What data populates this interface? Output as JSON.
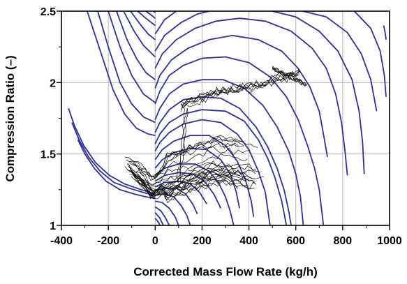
{
  "chart_data": {
    "type": "line",
    "title": "",
    "xlabel": "Corrected Mass Flow Rate (kg/h)",
    "ylabel": "Compression Ratio (–)",
    "xlim": [
      -400,
      1000
    ],
    "ylim": [
      1,
      2.5
    ],
    "xticks": [
      -400,
      -200,
      0,
      200,
      400,
      600,
      800,
      1000
    ],
    "yticks": [
      1,
      1.5,
      2,
      2.5
    ],
    "xtick_labels": [
      "-400",
      "-200",
      "0",
      "200",
      "400",
      "600",
      "800",
      "1000"
    ],
    "ytick_labels": [
      "1",
      "1.5",
      "2",
      "2.5"
    ],
    "grid": true,
    "legend": "none",
    "colors": {
      "speed_lines": "#2e3192",
      "measured_traces": "#111111",
      "grid": "#b4b4b4"
    },
    "series": [
      {
        "values": [
          [
            -290,
            2.5
          ],
          [
            -230,
            2.2
          ],
          [
            -180,
            1.95
          ],
          [
            -130,
            1.78
          ],
          [
            -80,
            1.68
          ],
          [
            -30,
            1.64
          ],
          [
            0,
            1.63
          ]
        ]
      },
      {
        "values": [
          [
            -245,
            2.5
          ],
          [
            -200,
            2.25
          ],
          [
            -150,
            2.0
          ],
          [
            -100,
            1.85
          ],
          [
            -50,
            1.76
          ],
          [
            0,
            1.72
          ]
        ]
      },
      {
        "values": [
          [
            -200,
            2.5
          ],
          [
            -150,
            2.25
          ],
          [
            -100,
            2.05
          ],
          [
            -50,
            1.92
          ],
          [
            0,
            1.86
          ]
        ]
      },
      {
        "values": [
          [
            -165,
            2.5
          ],
          [
            -120,
            2.3
          ],
          [
            -80,
            2.17
          ],
          [
            -40,
            2.07
          ],
          [
            0,
            2.02
          ]
        ]
      },
      {
        "values": [
          [
            -135,
            2.5
          ],
          [
            -90,
            2.36
          ],
          [
            -50,
            2.26
          ],
          [
            0,
            2.18
          ]
        ]
      },
      {
        "values": [
          [
            -105,
            2.5
          ],
          [
            -65,
            2.41
          ],
          [
            -30,
            2.34
          ],
          [
            0,
            2.3
          ]
        ]
      },
      {
        "values": [
          [
            -75,
            2.5
          ],
          [
            -40,
            2.45
          ],
          [
            0,
            2.4
          ]
        ]
      },
      {
        "values": [
          [
            -40,
            2.5
          ],
          [
            -15,
            2.47
          ],
          [
            0,
            2.45
          ]
        ]
      },
      {
        "values": [
          [
            -8,
            2.5
          ],
          [
            0,
            2.49
          ]
        ]
      },
      {
        "values": [
          [
            -330,
            1.6
          ],
          [
            -300,
            1.5
          ],
          [
            -260,
            1.4
          ],
          [
            -210,
            1.31
          ],
          [
            -150,
            1.25
          ],
          [
            -90,
            1.22
          ],
          [
            -40,
            1.2
          ],
          [
            0,
            1.19
          ]
        ]
      },
      {
        "values": [
          [
            -355,
            1.72
          ],
          [
            -325,
            1.6
          ],
          [
            -285,
            1.48
          ],
          [
            -235,
            1.38
          ],
          [
            -175,
            1.3
          ],
          [
            -110,
            1.26
          ],
          [
            -50,
            1.23
          ],
          [
            0,
            1.21
          ]
        ]
      },
      {
        "values": [
          [
            -370,
            1.82
          ],
          [
            -345,
            1.7
          ],
          [
            -305,
            1.56
          ],
          [
            -255,
            1.44
          ],
          [
            -195,
            1.35
          ],
          [
            -130,
            1.29
          ],
          [
            -60,
            1.25
          ],
          [
            0,
            1.22
          ]
        ]
      },
      {
        "values": [
          [
            0,
            1.57
          ],
          [
            20,
            1.64
          ],
          [
            60,
            1.72
          ],
          [
            120,
            1.78
          ],
          [
            200,
            1.81
          ],
          [
            300,
            1.8
          ],
          [
            380,
            1.73
          ],
          [
            440,
            1.6
          ],
          [
            480,
            1.47
          ],
          [
            510,
            1.34
          ],
          [
            540,
            1.17
          ],
          [
            560,
            1.0
          ]
        ]
      },
      {
        "values": [
          [
            0,
            1.52
          ],
          [
            20,
            1.58
          ],
          [
            60,
            1.65
          ],
          [
            120,
            1.71
          ],
          [
            200,
            1.74
          ],
          [
            280,
            1.72
          ],
          [
            350,
            1.64
          ],
          [
            400,
            1.53
          ],
          [
            440,
            1.38
          ],
          [
            470,
            1.23
          ],
          [
            490,
            1.0
          ]
        ]
      },
      {
        "values": [
          [
            0,
            1.46
          ],
          [
            30,
            1.53
          ],
          [
            80,
            1.59
          ],
          [
            150,
            1.63
          ],
          [
            230,
            1.63
          ],
          [
            300,
            1.56
          ],
          [
            350,
            1.45
          ],
          [
            385,
            1.32
          ],
          [
            410,
            1.17
          ],
          [
            420,
            1.06
          ]
        ]
      },
      {
        "values": [
          [
            0,
            1.4
          ],
          [
            30,
            1.46
          ],
          [
            80,
            1.51
          ],
          [
            150,
            1.54
          ],
          [
            220,
            1.53
          ],
          [
            280,
            1.46
          ],
          [
            320,
            1.36
          ],
          [
            345,
            1.24
          ],
          [
            360,
            1.12
          ]
        ]
      },
      {
        "values": [
          [
            0,
            1.35
          ],
          [
            40,
            1.4
          ],
          [
            100,
            1.43
          ],
          [
            170,
            1.43
          ],
          [
            230,
            1.38
          ],
          [
            270,
            1.3
          ],
          [
            300,
            1.2
          ],
          [
            320,
            1.1
          ],
          [
            335,
            1.0
          ]
        ]
      },
      {
        "values": [
          [
            0,
            1.31
          ],
          [
            40,
            1.35
          ],
          [
            100,
            1.37
          ],
          [
            160,
            1.36
          ],
          [
            210,
            1.31
          ],
          [
            250,
            1.22
          ],
          [
            280,
            1.12
          ]
        ]
      },
      {
        "values": [
          [
            0,
            1.27
          ],
          [
            40,
            1.3
          ],
          [
            100,
            1.31
          ],
          [
            150,
            1.29
          ],
          [
            190,
            1.23
          ],
          [
            220,
            1.15
          ]
        ]
      },
      {
        "values": [
          [
            0,
            1.24
          ],
          [
            40,
            1.26
          ],
          [
            90,
            1.26
          ],
          [
            130,
            1.22
          ],
          [
            160,
            1.15
          ],
          [
            180,
            1.08
          ]
        ]
      },
      {
        "values": [
          [
            0,
            1.21
          ],
          [
            40,
            1.22
          ],
          [
            80,
            1.2
          ],
          [
            110,
            1.14
          ],
          [
            135,
            1.07
          ],
          [
            150,
            1.0
          ]
        ]
      },
      {
        "values": [
          [
            0,
            1.17
          ],
          [
            30,
            1.16
          ],
          [
            60,
            1.12
          ],
          [
            85,
            1.06
          ],
          [
            100,
            1.0
          ]
        ]
      },
      {
        "values": [
          [
            0,
            1.13
          ],
          [
            25,
            1.1
          ],
          [
            45,
            1.05
          ],
          [
            60,
            1.0
          ]
        ]
      },
      {
        "values": [
          [
            0,
            1.09
          ],
          [
            20,
            1.05
          ],
          [
            35,
            1.0
          ]
        ]
      },
      {
        "values": [
          [
            0,
            1.05
          ],
          [
            15,
            1.02
          ],
          [
            20,
            1.0
          ]
        ]
      },
      {
        "values": [
          [
            0,
            1.96
          ],
          [
            20,
            2.05
          ],
          [
            70,
            2.16
          ],
          [
            140,
            2.24
          ],
          [
            230,
            2.3
          ],
          [
            330,
            2.33
          ],
          [
            440,
            2.3
          ],
          [
            540,
            2.22
          ],
          [
            610,
            2.1
          ],
          [
            660,
            1.97
          ],
          [
            700,
            1.8
          ],
          [
            720,
            1.62
          ],
          [
            735,
            1.48
          ]
        ]
      },
      {
        "values": [
          [
            0,
            1.85
          ],
          [
            20,
            1.94
          ],
          [
            60,
            2.05
          ],
          [
            120,
            2.12
          ],
          [
            200,
            2.17
          ],
          [
            300,
            2.18
          ],
          [
            400,
            2.14
          ],
          [
            490,
            2.04
          ],
          [
            560,
            1.9
          ],
          [
            610,
            1.74
          ],
          [
            650,
            1.56
          ],
          [
            680,
            1.4
          ],
          [
            700,
            1.25
          ],
          [
            718,
            1.0
          ]
        ]
      },
      {
        "values": [
          [
            0,
            1.74
          ],
          [
            20,
            1.82
          ],
          [
            60,
            1.92
          ],
          [
            120,
            1.99
          ],
          [
            200,
            2.02
          ],
          [
            290,
            2.02
          ],
          [
            380,
            1.96
          ],
          [
            460,
            1.84
          ],
          [
            520,
            1.69
          ],
          [
            570,
            1.52
          ],
          [
            600,
            1.36
          ],
          [
            620,
            1.2
          ],
          [
            632,
            1.0
          ]
        ]
      },
      {
        "values": [
          [
            0,
            1.65
          ],
          [
            20,
            1.72
          ],
          [
            60,
            1.81
          ],
          [
            120,
            1.88
          ],
          [
            200,
            1.9
          ],
          [
            280,
            1.89
          ],
          [
            360,
            1.82
          ],
          [
            430,
            1.69
          ],
          [
            480,
            1.55
          ],
          [
            520,
            1.4
          ],
          [
            550,
            1.25
          ],
          [
            570,
            1.1
          ],
          [
            580,
            1.0
          ]
        ]
      },
      {
        "values": [
          [
            0,
            2.1
          ],
          [
            30,
            2.2
          ],
          [
            90,
            2.3
          ],
          [
            170,
            2.38
          ],
          [
            260,
            2.43
          ],
          [
            360,
            2.45
          ],
          [
            470,
            2.43
          ],
          [
            580,
            2.36
          ],
          [
            670,
            2.24
          ],
          [
            730,
            2.1
          ],
          [
            770,
            1.92
          ],
          [
            795,
            1.72
          ],
          [
            810,
            1.52
          ],
          [
            820,
            1.35
          ]
        ]
      },
      {
        "values": [
          [
            0,
            2.22
          ],
          [
            40,
            2.33
          ],
          [
            110,
            2.42
          ],
          [
            180,
            2.48
          ],
          [
            230,
            2.5
          ]
        ]
      },
      {
        "values": [
          [
            0,
            2.34
          ],
          [
            40,
            2.44
          ],
          [
            90,
            2.5
          ]
        ]
      },
      {
        "values": [
          [
            500,
            2.5
          ],
          [
            600,
            2.46
          ],
          [
            700,
            2.36
          ],
          [
            780,
            2.22
          ],
          [
            840,
            2.02
          ],
          [
            870,
            1.8
          ],
          [
            885,
            1.58
          ],
          [
            892,
            1.36
          ]
        ]
      },
      {
        "values": [
          [
            630,
            2.5
          ],
          [
            730,
            2.46
          ],
          [
            820,
            2.35
          ],
          [
            880,
            2.2
          ],
          [
            920,
            2.02
          ],
          [
            945,
            1.8
          ]
        ]
      },
      {
        "values": [
          [
            850,
            2.5
          ],
          [
            920,
            2.38
          ],
          [
            960,
            2.22
          ],
          [
            978,
            2.05
          ],
          [
            985,
            1.9
          ]
        ]
      },
      {
        "values": [
          [
            975,
            2.4
          ],
          [
            982,
            2.34
          ],
          [
            985,
            2.3
          ]
        ]
      }
    ]
  }
}
